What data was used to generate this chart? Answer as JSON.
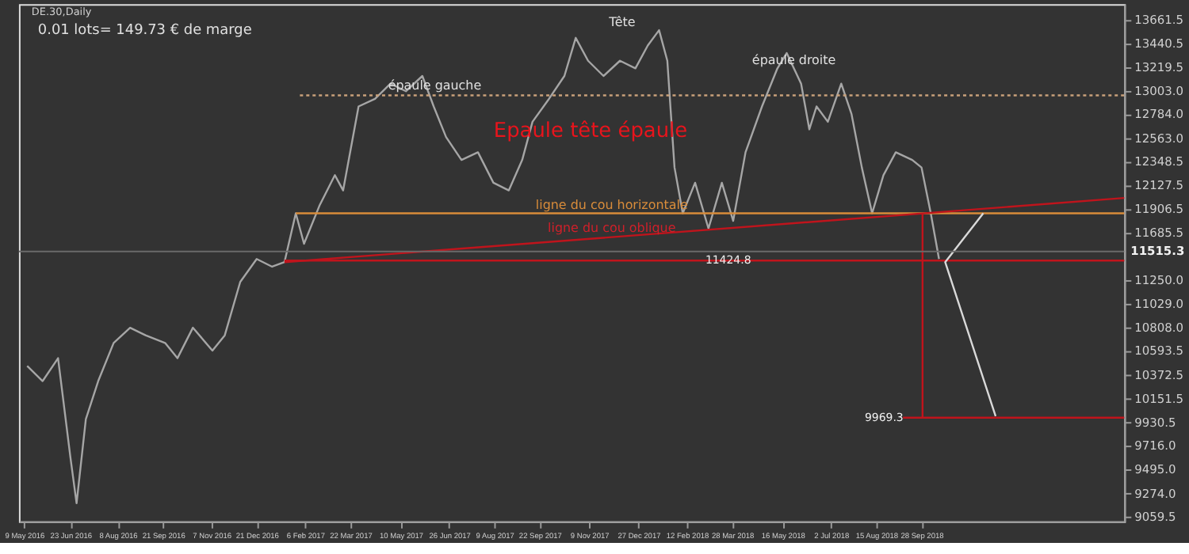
{
  "chart_data": {
    "type": "line",
    "title": "DE.30,Daily",
    "xlim": [
      "2016-05-04",
      "2019-04-13"
    ],
    "xticks": [
      {
        "value": "2016-05-09",
        "label": "9 May 2016"
      },
      {
        "value": "2016-06-23",
        "label": "23 Jun 2016"
      },
      {
        "value": "2016-08-08",
        "label": "8 Aug 2016"
      },
      {
        "value": "2016-09-21",
        "label": "21 Sep 2016"
      },
      {
        "value": "2016-11-07",
        "label": "7 Nov 2016"
      },
      {
        "value": "2016-12-21",
        "label": "21 Dec 2016"
      },
      {
        "value": "2017-02-06",
        "label": "6 Feb 2017"
      },
      {
        "value": "2017-03-22",
        "label": "22 Mar 2017"
      },
      {
        "value": "2017-05-10",
        "label": "10 May 2017"
      },
      {
        "value": "2017-06-26",
        "label": "26 Jun 2017"
      },
      {
        "value": "2017-08-09",
        "label": "9 Aug 2017"
      },
      {
        "value": "2017-09-22",
        "label": "22 Sep 2017"
      },
      {
        "value": "2017-11-09",
        "label": "9 Nov 2017"
      },
      {
        "value": "2017-12-27",
        "label": "27 Dec 2017"
      },
      {
        "value": "2018-02-12",
        "label": "12 Feb 2018"
      },
      {
        "value": "2018-03-28",
        "label": "28 Mar 2018"
      },
      {
        "value": "2018-05-16",
        "label": "16 May 2018"
      },
      {
        "value": "2018-07-02",
        "label": "2 Jul 2018"
      },
      {
        "value": "2018-08-15",
        "label": "15 Aug 2018"
      },
      {
        "value": "2018-09-28",
        "label": "28 Sep 2018"
      }
    ],
    "ylim": [
      9017,
      13803
    ],
    "yticks": [
      13661.5,
      13440.5,
      13219.5,
      {
        "value": 13003,
        "label": "13003.0"
      },
      {
        "value": 12784,
        "label": "12784.0"
      },
      {
        "value": 12563,
        "label": "12563.0"
      },
      12348.5,
      12127.5,
      11906.5,
      11685.5,
      {
        "value": 11250,
        "label": "11250.0"
      },
      {
        "value": 11029,
        "label": "11029.0"
      },
      {
        "value": 10808,
        "label": "10808.0"
      },
      10593.5,
      10372.5,
      10151.5,
      9930.5,
      {
        "value": 9716,
        "label": "9716.0"
      },
      {
        "value": 9495,
        "label": "9495.0"
      },
      {
        "value": 9274,
        "label": "9274.0"
      },
      9059.5
    ],
    "series": [
      {
        "color": "#a6a6a6",
        "x": [
          "2016-05-12",
          "2016-05-27",
          "2016-06-11",
          "2016-06-23",
          "2016-06-29",
          "2016-07-08",
          "2016-07-20",
          "2016-08-04",
          "2016-08-20",
          "2016-09-04",
          "2016-09-23",
          "2016-10-05",
          "2016-10-20",
          "2016-11-08",
          "2016-11-20",
          "2016-12-05",
          "2016-12-21",
          "2017-01-05",
          "2017-01-17",
          "2017-01-28",
          "2017-02-05",
          "2017-02-20",
          "2017-03-07",
          "2017-03-15",
          "2017-03-30",
          "2017-04-15",
          "2017-04-30",
          "2017-05-15",
          "2017-05-31",
          "2017-06-11",
          "2017-06-23",
          "2017-07-08",
          "2017-07-24",
          "2017-08-08",
          "2017-08-23",
          "2017-09-05",
          "2017-09-15",
          "2017-10-01",
          "2017-10-16",
          "2017-10-27",
          "2017-11-08",
          "2017-11-23",
          "2017-12-09",
          "2017-12-24",
          "2018-01-05",
          "2018-01-16",
          "2018-01-24",
          "2018-01-31",
          "2018-02-08",
          "2018-02-20",
          "2018-03-05",
          "2018-03-18",
          "2018-03-29",
          "2018-04-10",
          "2018-04-26",
          "2018-05-11",
          "2018-05-20",
          "2018-06-03",
          "2018-06-11",
          "2018-06-18",
          "2018-06-29",
          "2018-07-12",
          "2018-07-22",
          "2018-08-01",
          "2018-08-11",
          "2018-08-22",
          "2018-09-03",
          "2018-09-19",
          "2018-09-28",
          "2018-10-07",
          "2018-10-15"
        ],
        "values": [
          10456,
          10315,
          10527,
          9609,
          9185,
          9962,
          10315,
          10668,
          10809,
          10739,
          10668,
          10527,
          10809,
          10597,
          10739,
          11233,
          11445,
          11374,
          11416,
          11868,
          11586,
          11939,
          12221,
          12080,
          12857,
          12927,
          13068,
          12998,
          13139,
          12857,
          12574,
          12362,
          12433,
          12151,
          12080,
          12362,
          12715,
          12927,
          13139,
          13492,
          13280,
          13139,
          13280,
          13210,
          13421,
          13563,
          13280,
          12292,
          11868,
          12151,
          11727,
          12151,
          11798,
          12433,
          12857,
          13210,
          13351,
          13068,
          12645,
          12857,
          12715,
          13068,
          12786,
          12292,
          11868,
          12221,
          12433,
          12362,
          12292,
          11868,
          11445
        ]
      },
      {
        "color": "#c8a07a",
        "line_style": "dotted",
        "x": [
          "2017-02-01",
          "2019-04-13"
        ],
        "values": [
          12960,
          12960
        ]
      },
      {
        "color": "#d98c3a",
        "x": [
          "2017-01-28",
          "2019-04-13"
        ],
        "values": [
          11868,
          11868
        ]
      },
      {
        "color": "#c0141c",
        "x": [
          "2017-01-17",
          "2019-04-13"
        ],
        "values": [
          11416,
          12010
        ]
      },
      {
        "color": "#c0141c",
        "x": [
          "2017-01-17",
          "2019-04-13"
        ],
        "values": [
          11430,
          11430
        ]
      },
      {
        "color": "#c0141c",
        "x": [
          "2018-09-29",
          "2018-09-29"
        ],
        "values": [
          11868,
          9976
        ]
      },
      {
        "color": "#c0141c",
        "x": [
          "2018-09-10",
          "2019-04-13"
        ],
        "values": [
          9976,
          9976
        ]
      },
      {
        "color": "#d9d9d9",
        "x": [
          "2018-11-27",
          "2018-10-21",
          "2018-12-09"
        ],
        "values": [
          11868,
          11416,
          9990
        ]
      }
    ],
    "ref_lines": [
      {
        "axis": "y",
        "value": 11515.3,
        "label": "11515.3",
        "color": "#6a6a6a"
      }
    ],
    "annotations": [
      "0.01 lots= 149.73 € de marge",
      "Tête",
      {
        "text": "épaule gauche",
        "x": "2017-06-12",
        "y": 13040
      },
      {
        "text": "épaule droite",
        "x": "2018-05-27",
        "y": 13280
      },
      "Epaule tête épaule",
      {
        "text": "ligne du cou horizontale",
        "x": "2017-12-01",
        "y": 11939
      },
      {
        "text": "ligne du cou oblique",
        "x": "2017-12-01",
        "y": 11727
      },
      {
        "text": "11424.8",
        "x": "2018-04-20",
        "y": 11430
      },
      {
        "text": "9969.3",
        "x": "2018-09-15",
        "y": 9976
      }
    ]
  }
}
